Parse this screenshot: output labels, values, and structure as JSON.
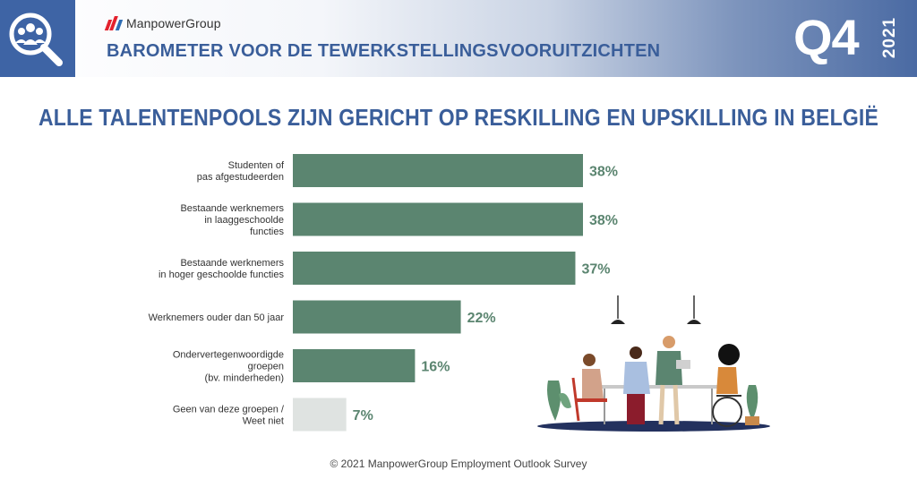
{
  "header": {
    "brand": "ManpowerGroup",
    "title": "BAROMETER VOOR DE TEWERKSTELLINGSVOORUITZICHTEN",
    "quarter": "Q4",
    "year": "2021"
  },
  "chart_data": {
    "type": "bar",
    "orientation": "horizontal",
    "title": "ALLE TALENTENPOOLS ZIJN GERICHT OP RESKILLING EN UPSKILLING IN BELGIË",
    "categories": [
      [
        "Studenten of",
        "pas afgestudeerden"
      ],
      [
        "Bestaande werknemers",
        "in laaggeschoolde",
        "functies"
      ],
      [
        "Bestaande werknemers",
        "in hoger geschoolde functies"
      ],
      [
        "Werknemers ouder dan 50 jaar"
      ],
      [
        "Ondervertegenwoordigde",
        "groepen",
        "(bv. minderheden)"
      ],
      [
        "Geen van deze groepen /",
        "Weet niet"
      ]
    ],
    "values": [
      38,
      38,
      37,
      22,
      16,
      7
    ],
    "value_labels": [
      "38%",
      "38%",
      "37%",
      "22%",
      "16%",
      "7%"
    ],
    "bar_colors": [
      "#5b8570",
      "#5b8570",
      "#5b8570",
      "#5b8570",
      "#5b8570",
      "#dfe3e1"
    ],
    "value_color": "#5b8570",
    "xlim": [
      0,
      38
    ],
    "grid": false,
    "legend": "none"
  },
  "footer": "© 2021 ManpowerGroup Employment Outlook Survey",
  "colors": {
    "header_blue": "#3e64a5",
    "title_blue": "#3a5e9a",
    "bar_green": "#5b8570",
    "bar_grey": "#dfe3e1"
  },
  "icons": [
    "people-search-icon",
    "manpowergroup-logo-icon",
    "office-workers-illustration"
  ]
}
